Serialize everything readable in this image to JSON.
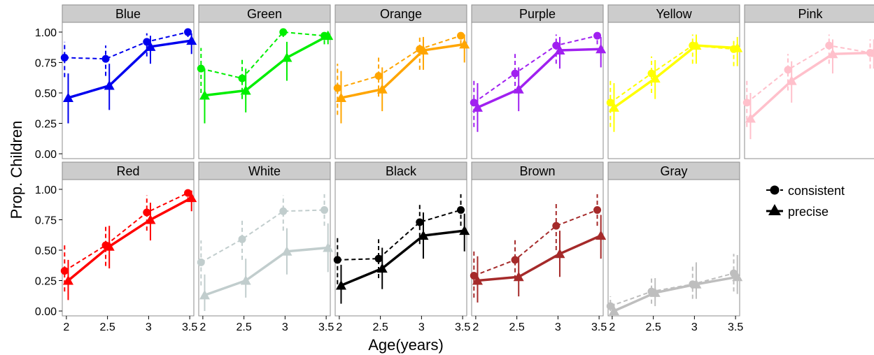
{
  "chart_data": {
    "type": "line",
    "xlabel": "Age(years)",
    "ylabel": "Prop. Children",
    "x_ticks": [
      "2",
      "2.5",
      "3",
      "3.5"
    ],
    "y_ticks": [
      "0.00",
      "0.25",
      "0.50",
      "0.75",
      "1.00"
    ],
    "xlim": [
      1.95,
      3.55
    ],
    "ylim": [
      -0.04,
      1.08
    ],
    "legend": {
      "placement": "right",
      "entries": [
        {
          "label": "consistent",
          "shape": "circle",
          "line": "dashed"
        },
        {
          "label": "precise",
          "shape": "triangle",
          "line": "solid"
        }
      ]
    },
    "x": [
      2,
      2.5,
      3,
      3.5
    ],
    "panels": [
      {
        "name": "Blue",
        "color": "#0000ee",
        "consistent": [
          0.79,
          0.78,
          0.92,
          1.0
        ],
        "consistent_err": [
          [
            0.63,
            0.92
          ],
          [
            0.64,
            0.89
          ],
          [
            0.8,
            0.99
          ],
          [
            0.96,
            1.0
          ]
        ],
        "precise": [
          0.46,
          0.56,
          0.88,
          0.93
        ],
        "precise_err": [
          [
            0.25,
            0.66
          ],
          [
            0.36,
            0.74
          ],
          [
            0.74,
            0.97
          ],
          [
            0.82,
            0.99
          ]
        ]
      },
      {
        "name": "Green",
        "color": "#00ee00",
        "consistent": [
          0.7,
          0.62,
          1.0,
          0.97
        ],
        "consistent_err": [
          [
            0.5,
            0.87
          ],
          [
            0.45,
            0.78
          ],
          [
            0.96,
            1.0
          ],
          [
            0.9,
            1.0
          ]
        ],
        "precise": [
          0.48,
          0.52,
          0.79,
          0.97
        ],
        "precise_err": [
          [
            0.25,
            0.7
          ],
          [
            0.34,
            0.7
          ],
          [
            0.6,
            0.92
          ],
          [
            0.9,
            1.0
          ]
        ]
      },
      {
        "name": "Orange",
        "color": "#ffa500",
        "consistent": [
          0.54,
          0.64,
          0.86,
          0.97
        ],
        "consistent_err": [
          [
            0.32,
            0.74
          ],
          [
            0.47,
            0.79
          ],
          [
            0.69,
            0.96
          ],
          [
            0.9,
            1.0
          ]
        ],
        "precise": [
          0.46,
          0.53,
          0.85,
          0.9
        ],
        "precise_err": [
          [
            0.25,
            0.68
          ],
          [
            0.35,
            0.71
          ],
          [
            0.69,
            0.96
          ],
          [
            0.75,
            0.98
          ]
        ]
      },
      {
        "name": "Purple",
        "color": "#a020f0",
        "consistent": [
          0.42,
          0.66,
          0.89,
          0.97
        ],
        "consistent_err": [
          [
            0.22,
            0.62
          ],
          [
            0.5,
            0.82
          ],
          [
            0.74,
            0.98
          ],
          [
            0.9,
            1.0
          ]
        ],
        "precise": [
          0.38,
          0.53,
          0.85,
          0.86
        ],
        "precise_err": [
          [
            0.18,
            0.58
          ],
          [
            0.35,
            0.71
          ],
          [
            0.7,
            0.96
          ],
          [
            0.71,
            0.96
          ]
        ]
      },
      {
        "name": "Yellow",
        "color": "#ffff00",
        "consistent": [
          0.42,
          0.66,
          0.89,
          0.86
        ],
        "consistent_err": [
          [
            0.22,
            0.62
          ],
          [
            0.5,
            0.8
          ],
          [
            0.74,
            0.98
          ],
          [
            0.72,
            0.95
          ]
        ],
        "precise": [
          0.38,
          0.62,
          0.89,
          0.87
        ],
        "precise_err": [
          [
            0.18,
            0.58
          ],
          [
            0.45,
            0.77
          ],
          [
            0.74,
            0.98
          ],
          [
            0.72,
            0.96
          ]
        ]
      },
      {
        "name": "Pink",
        "color": "#ffc0cb",
        "consistent": [
          0.42,
          0.69,
          0.89,
          0.83
        ],
        "consistent_err": [
          [
            0.22,
            0.62
          ],
          [
            0.52,
            0.82
          ],
          [
            0.74,
            0.98
          ],
          [
            0.7,
            0.94
          ]
        ],
        "precise": [
          0.29,
          0.6,
          0.82,
          0.83
        ],
        "precise_err": [
          [
            0.12,
            0.5
          ],
          [
            0.42,
            0.76
          ],
          [
            0.66,
            0.94
          ],
          [
            0.7,
            0.94
          ]
        ]
      },
      {
        "name": "Red",
        "color": "#ff0000",
        "consistent": [
          0.33,
          0.54,
          0.81,
          0.97
        ],
        "consistent_err": [
          [
            0.16,
            0.54
          ],
          [
            0.37,
            0.71
          ],
          [
            0.66,
            0.95
          ],
          [
            0.9,
            1.0
          ]
        ],
        "precise": [
          0.25,
          0.53,
          0.75,
          0.93
        ],
        "precise_err": [
          [
            0.09,
            0.42
          ],
          [
            0.35,
            0.7
          ],
          [
            0.58,
            0.89
          ],
          [
            0.82,
            0.99
          ]
        ]
      },
      {
        "name": "White",
        "color": "#c1cdcd",
        "consistent": [
          0.4,
          0.59,
          0.82,
          0.83
        ],
        "consistent_err": [
          [
            0.21,
            0.58
          ],
          [
            0.42,
            0.75
          ],
          [
            0.66,
            0.95
          ],
          [
            0.7,
            0.96
          ]
        ],
        "precise": [
          0.13,
          0.25,
          0.49,
          0.52
        ],
        "precise_err": [
          [
            0.0,
            0.3
          ],
          [
            0.11,
            0.43
          ],
          [
            0.3,
            0.68
          ],
          [
            0.32,
            0.72
          ]
        ]
      },
      {
        "name": "Black",
        "color": "#000000",
        "consistent": [
          0.42,
          0.43,
          0.73,
          0.83
        ],
        "consistent_err": [
          [
            0.22,
            0.62
          ],
          [
            0.27,
            0.59
          ],
          [
            0.55,
            0.88
          ],
          [
            0.7,
            0.96
          ]
        ],
        "precise": [
          0.21,
          0.35,
          0.62,
          0.66
        ],
        "precise_err": [
          [
            0.06,
            0.38
          ],
          [
            0.18,
            0.52
          ],
          [
            0.43,
            0.81
          ],
          [
            0.49,
            0.8
          ]
        ]
      },
      {
        "name": "Brown",
        "color": "#a52a2a",
        "consistent": [
          0.29,
          0.42,
          0.7,
          0.83
        ],
        "consistent_err": [
          [
            0.11,
            0.5
          ],
          [
            0.26,
            0.59
          ],
          [
            0.5,
            0.88
          ],
          [
            0.7,
            0.96
          ]
        ],
        "precise": [
          0.25,
          0.28,
          0.47,
          0.62
        ],
        "precise_err": [
          [
            0.07,
            0.45
          ],
          [
            0.12,
            0.45
          ],
          [
            0.28,
            0.66
          ],
          [
            0.43,
            0.79
          ]
        ]
      },
      {
        "name": "Gray",
        "color": "#bebebe",
        "consistent": [
          0.04,
          0.16,
          0.22,
          0.31
        ],
        "consistent_err": [
          [
            0.0,
            0.12
          ],
          [
            0.06,
            0.29
          ],
          [
            0.1,
            0.38
          ],
          [
            0.16,
            0.47
          ]
        ],
        "precise": [
          0.0,
          0.15,
          0.22,
          0.28
        ],
        "precise_err": [
          [
            0.0,
            0.06
          ],
          [
            0.04,
            0.27
          ],
          [
            0.1,
            0.4
          ],
          [
            0.14,
            0.46
          ]
        ]
      }
    ]
  }
}
